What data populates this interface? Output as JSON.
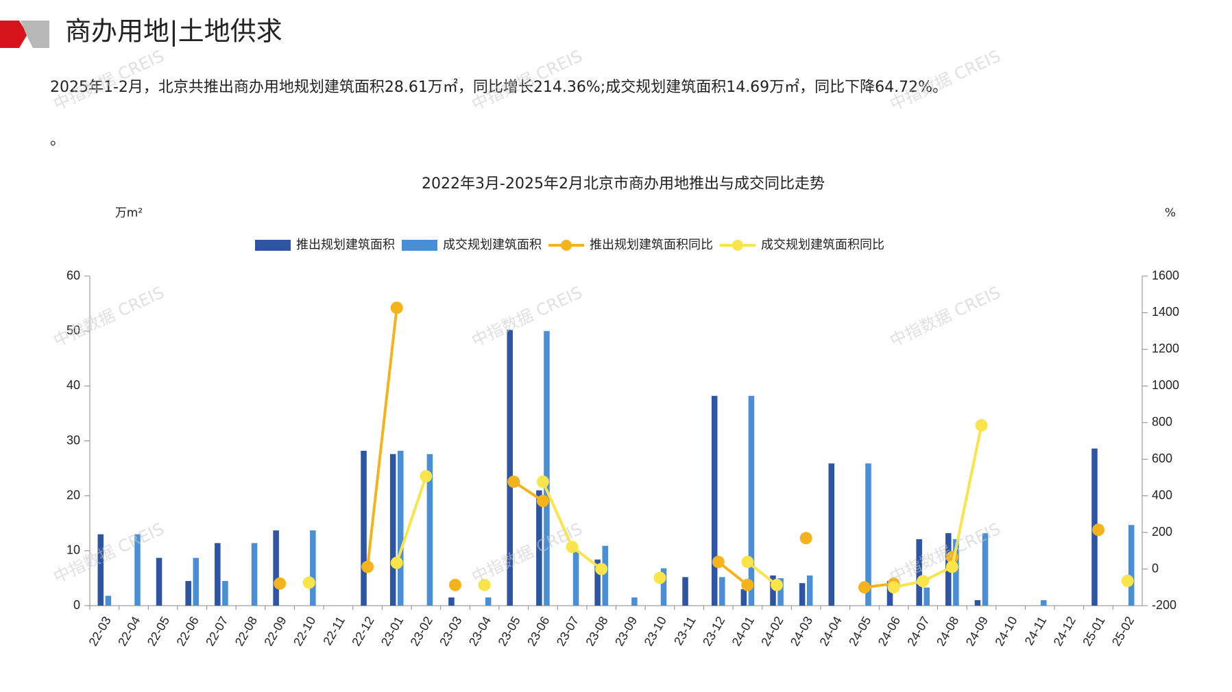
{
  "header": {
    "title": "商办用地|土地供求",
    "paragraph": "2025年1-2月，北京共推出商办用地规划建筑面积28.61万㎡，同比增长214.36%;成交规划建筑面积14.69万㎡，同比下降64.72%。",
    "note": "。"
  },
  "watermark": "中指数据 CREIS",
  "chart_data": {
    "type": "bar",
    "title": "2022年3月-2025年2月北京市商办用地推出与成交同比走势",
    "y_label": "万m²",
    "y2_label": "%",
    "categories": [
      "22-03",
      "22-04",
      "22-05",
      "22-06",
      "22-07",
      "22-08",
      "22-09",
      "22-10",
      "22-11",
      "22-12",
      "23-01",
      "23-02",
      "23-03",
      "23-04",
      "23-05",
      "23-06",
      "23-07",
      "23-08",
      "23-09",
      "23-10",
      "23-11",
      "23-12",
      "24-01",
      "24-02",
      "24-03",
      "24-04",
      "24-05",
      "24-06",
      "24-07",
      "24-08",
      "24-09",
      "24-10",
      "24-11",
      "24-12",
      "25-01",
      "25-02"
    ],
    "series": [
      {
        "name": "推出规划建筑面积",
        "type": "bar",
        "color": "#2e55a3",
        "values": [
          13,
          0,
          8.7,
          4.5,
          11.4,
          0,
          13.7,
          0,
          0,
          28.2,
          27.6,
          0,
          1.5,
          0,
          50.2,
          21,
          0,
          8.4,
          0,
          0,
          5.2,
          38.2,
          3,
          5.5,
          4.1,
          25.9,
          0,
          4.5,
          12.1,
          13.2,
          1,
          0,
          0,
          0,
          28.61,
          0
        ]
      },
      {
        "name": "成交规划建筑面积",
        "type": "bar",
        "color": "#4a8fd6",
        "values": [
          1.8,
          13,
          0,
          8.7,
          4.5,
          11.4,
          0,
          13.7,
          0,
          0,
          28.2,
          27.6,
          0,
          1.5,
          0,
          50,
          10.1,
          10.9,
          1.5,
          6.8,
          0,
          5.2,
          38.2,
          5,
          5.5,
          0,
          25.9,
          0,
          3.3,
          12.1,
          13.2,
          0,
          1,
          0,
          0,
          14.69
        ]
      },
      {
        "name": "推出规划建筑面积同比",
        "type": "line",
        "axis": "y2",
        "color": "#f4b31b",
        "values": [
          null,
          null,
          null,
          null,
          null,
          null,
          -79,
          null,
          null,
          12,
          1427,
          null,
          -87,
          null,
          477,
          372,
          null,
          null,
          null,
          null,
          null,
          39,
          -87,
          null,
          169,
          null,
          -100,
          -80,
          null,
          65,
          null,
          null,
          null,
          null,
          214.36,
          null
        ]
      },
      {
        "name": "成交规划建筑面积同比",
        "type": "line",
        "axis": "y2",
        "color": "#f9e54a",
        "values": [
          null,
          null,
          null,
          null,
          null,
          null,
          null,
          -74,
          null,
          null,
          34,
          507,
          null,
          -87,
          null,
          477,
          121,
          0,
          null,
          -48,
          null,
          null,
          39,
          -87,
          null,
          null,
          null,
          -100,
          -66,
          12,
          785,
          null,
          null,
          null,
          null,
          -64.72
        ]
      }
    ],
    "ylim": [
      0,
      60
    ],
    "yticks": [
      0,
      10,
      20,
      30,
      40,
      50,
      60
    ],
    "y2lim": [
      -200,
      1600
    ],
    "y2ticks": [
      -200,
      0,
      200,
      400,
      600,
      800,
      1000,
      1200,
      1400,
      1600
    ]
  }
}
